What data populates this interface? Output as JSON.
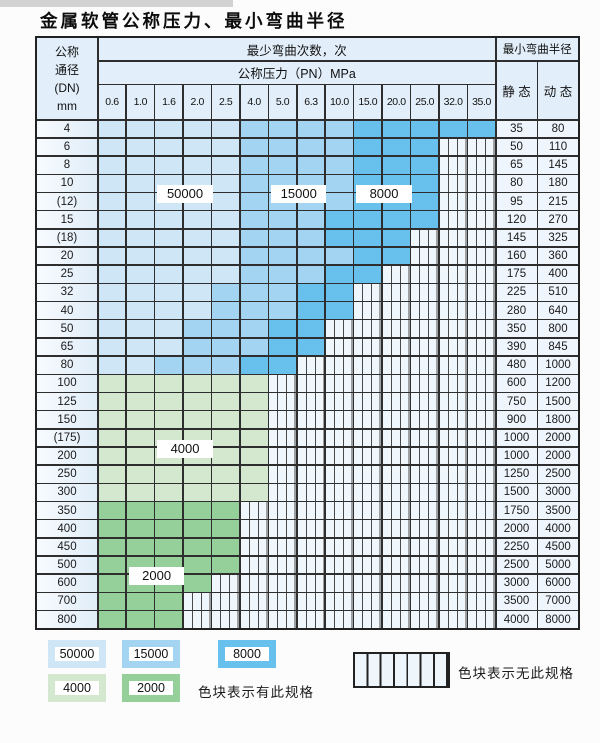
{
  "title": "金属软管公称压力、最小弯曲半径",
  "colors": {
    "b1": "#cfe6f7",
    "b2": "#a3d5f2",
    "b3": "#68c1ec",
    "g1": "#d4e8d0",
    "g2": "#95cf9a",
    "hatch_bg": "#eff6fc",
    "grid_line": "#2e2e2e"
  },
  "table": {
    "header": {
      "dn_label_lines": [
        "公称",
        "通径",
        "(DN)",
        "mm"
      ],
      "bend_cycles_label": "最少弯曲次数，次",
      "pressure_label": "公称压力（PN）MPa",
      "bend_radius_label": "最小弯曲半径",
      "static_label": "静 态",
      "dynamic_label": "动 态",
      "pressure_columns": [
        "0.6",
        "1.0",
        "1.6",
        "2.0",
        "2.5",
        "4.0",
        "5.0",
        "6.3",
        "10.0",
        "15.0",
        "20.0",
        "25.0",
        "32.0",
        "35.0"
      ]
    },
    "rows": [
      {
        "dn": "4",
        "static": "35",
        "dynamic": "80",
        "bands": [
          [
            "b1",
            0,
            4
          ],
          [
            "b2",
            5,
            8
          ],
          [
            "b3",
            9,
            13
          ]
        ]
      },
      {
        "dn": "6",
        "static": "50",
        "dynamic": "110",
        "bands": [
          [
            "b1",
            0,
            4
          ],
          [
            "b2",
            5,
            8
          ],
          [
            "b3",
            9,
            11
          ]
        ]
      },
      {
        "dn": "8",
        "static": "65",
        "dynamic": "145",
        "bands": [
          [
            "b1",
            0,
            4
          ],
          [
            "b2",
            5,
            8
          ],
          [
            "b3",
            9,
            11
          ]
        ]
      },
      {
        "dn": "10",
        "static": "80",
        "dynamic": "180",
        "bands": [
          [
            "b1",
            0,
            4
          ],
          [
            "b2",
            5,
            8
          ],
          [
            "b3",
            9,
            11
          ]
        ]
      },
      {
        "dn": "(12)",
        "static": "95",
        "dynamic": "215",
        "bands": [
          [
            "b1",
            0,
            4
          ],
          [
            "b2",
            5,
            8
          ],
          [
            "b3",
            9,
            11
          ]
        ]
      },
      {
        "dn": "15",
        "static": "120",
        "dynamic": "270",
        "bands": [
          [
            "b1",
            0,
            4
          ],
          [
            "b2",
            5,
            7
          ],
          [
            "b3",
            8,
            11
          ]
        ]
      },
      {
        "dn": "(18)",
        "static": "145",
        "dynamic": "325",
        "bands": [
          [
            "b1",
            0,
            4
          ],
          [
            "b2",
            5,
            7
          ],
          [
            "b3",
            8,
            10
          ]
        ]
      },
      {
        "dn": "20",
        "static": "160",
        "dynamic": "360",
        "bands": [
          [
            "b1",
            0,
            4
          ],
          [
            "b2",
            5,
            8
          ],
          [
            "b3",
            9,
            10
          ]
        ]
      },
      {
        "dn": "25",
        "static": "175",
        "dynamic": "400",
        "bands": [
          [
            "b1",
            0,
            4
          ],
          [
            "b2",
            5,
            7
          ],
          [
            "b3",
            8,
            9
          ]
        ]
      },
      {
        "dn": "32",
        "static": "225",
        "dynamic": "510",
        "bands": [
          [
            "b1",
            0,
            3
          ],
          [
            "b2",
            4,
            6
          ],
          [
            "b3",
            7,
            8
          ]
        ]
      },
      {
        "dn": "40",
        "static": "280",
        "dynamic": "640",
        "bands": [
          [
            "b1",
            0,
            3
          ],
          [
            "b2",
            4,
            6
          ],
          [
            "b3",
            7,
            8
          ]
        ]
      },
      {
        "dn": "50",
        "static": "350",
        "dynamic": "800",
        "bands": [
          [
            "b1",
            0,
            2
          ],
          [
            "b2",
            3,
            5
          ],
          [
            "b3",
            6,
            7
          ]
        ]
      },
      {
        "dn": "65",
        "static": "390",
        "dynamic": "845",
        "bands": [
          [
            "b1",
            0,
            2
          ],
          [
            "b2",
            3,
            5
          ],
          [
            "b3",
            6,
            7
          ]
        ]
      },
      {
        "dn": "80",
        "static": "480",
        "dynamic": "1000",
        "bands": [
          [
            "b1",
            0,
            1
          ],
          [
            "b2",
            2,
            4
          ],
          [
            "b3",
            5,
            6
          ]
        ]
      },
      {
        "dn": "100",
        "static": "600",
        "dynamic": "1200",
        "bands": [
          [
            "g1",
            0,
            5
          ]
        ]
      },
      {
        "dn": "125",
        "static": "750",
        "dynamic": "1500",
        "bands": [
          [
            "g1",
            0,
            5
          ]
        ]
      },
      {
        "dn": "150",
        "static": "900",
        "dynamic": "1800",
        "bands": [
          [
            "g1",
            0,
            5
          ]
        ]
      },
      {
        "dn": "(175)",
        "static": "1000",
        "dynamic": "2000",
        "bands": [
          [
            "g1",
            0,
            5
          ]
        ]
      },
      {
        "dn": "200",
        "static": "1000",
        "dynamic": "2000",
        "bands": [
          [
            "g1",
            0,
            5
          ]
        ]
      },
      {
        "dn": "250",
        "static": "1250",
        "dynamic": "2500",
        "bands": [
          [
            "g1",
            0,
            5
          ]
        ]
      },
      {
        "dn": "300",
        "static": "1500",
        "dynamic": "3000",
        "bands": [
          [
            "g1",
            0,
            5
          ]
        ]
      },
      {
        "dn": "350",
        "static": "1750",
        "dynamic": "3500",
        "bands": [
          [
            "g2",
            0,
            4
          ]
        ]
      },
      {
        "dn": "400",
        "static": "2000",
        "dynamic": "4000",
        "bands": [
          [
            "g2",
            0,
            4
          ]
        ]
      },
      {
        "dn": "450",
        "static": "2250",
        "dynamic": "4500",
        "bands": [
          [
            "g2",
            0,
            4
          ]
        ]
      },
      {
        "dn": "500",
        "static": "2500",
        "dynamic": "5000",
        "bands": [
          [
            "g2",
            0,
            4
          ]
        ]
      },
      {
        "dn": "600",
        "static": "3000",
        "dynamic": "6000",
        "bands": [
          [
            "g2",
            0,
            3
          ]
        ]
      },
      {
        "dn": "700",
        "static": "3500",
        "dynamic": "7000",
        "bands": [
          [
            "g2",
            0,
            2
          ]
        ]
      },
      {
        "dn": "800",
        "static": "4000",
        "dynamic": "8000",
        "bands": [
          [
            "g2",
            0,
            2
          ]
        ]
      }
    ]
  },
  "overlay_labels": [
    {
      "text": "50000",
      "col_start": 2,
      "col_end": 3,
      "row_boundary": 4
    },
    {
      "text": "15000",
      "col_start": 6,
      "col_end": 7,
      "row_boundary": 4
    },
    {
      "text": "8000",
      "col_start": 9,
      "col_end": 10,
      "row_boundary": 4
    },
    {
      "text": "4000",
      "col_start": 2,
      "col_end": 3,
      "row_boundary": 18
    },
    {
      "text": "2000",
      "col_start": 1,
      "col_end": 2,
      "row_boundary": 25
    }
  ],
  "legend": {
    "blocks": [
      {
        "value": "50000",
        "color_key": "b1"
      },
      {
        "value": "15000",
        "color_key": "b2"
      },
      {
        "value": "8000",
        "color_key": "b3"
      },
      {
        "value": "4000",
        "color_key": "g1"
      },
      {
        "value": "2000",
        "color_key": "g2"
      }
    ],
    "has_spec_note": "色块表示有此规格",
    "no_spec_note": "色块表示无此规格"
  }
}
